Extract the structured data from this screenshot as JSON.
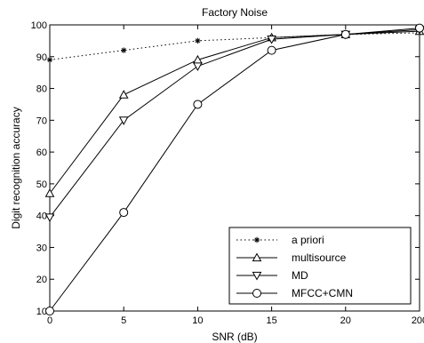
{
  "chart_data": {
    "type": "line",
    "title": "Factory Noise",
    "xlabel": "SNR (dB)",
    "ylabel": "Digit recognition accuracy",
    "categories": [
      "0",
      "5",
      "10",
      "15",
      "20",
      "200"
    ],
    "yticks": [
      10,
      20,
      30,
      40,
      50,
      60,
      70,
      80,
      90,
      100
    ],
    "ylim": [
      10,
      100
    ],
    "grid": false,
    "legend_position": "bottom-right",
    "series": [
      {
        "name": "a priori",
        "marker": "asterisk",
        "line": "dotted",
        "values": [
          89,
          92,
          95,
          96,
          97,
          97.5
        ]
      },
      {
        "name": "multisource",
        "marker": "triangle-up",
        "line": "solid",
        "values": [
          47,
          78,
          89,
          96,
          97,
          98
        ]
      },
      {
        "name": "MD",
        "marker": "triangle-down",
        "line": "solid",
        "values": [
          39.5,
          70,
          87,
          95.5,
          97,
          98.5
        ]
      },
      {
        "name": "MFCC+CMN",
        "marker": "circle",
        "line": "solid",
        "values": [
          10,
          41,
          75,
          92,
          97,
          99
        ]
      }
    ]
  }
}
